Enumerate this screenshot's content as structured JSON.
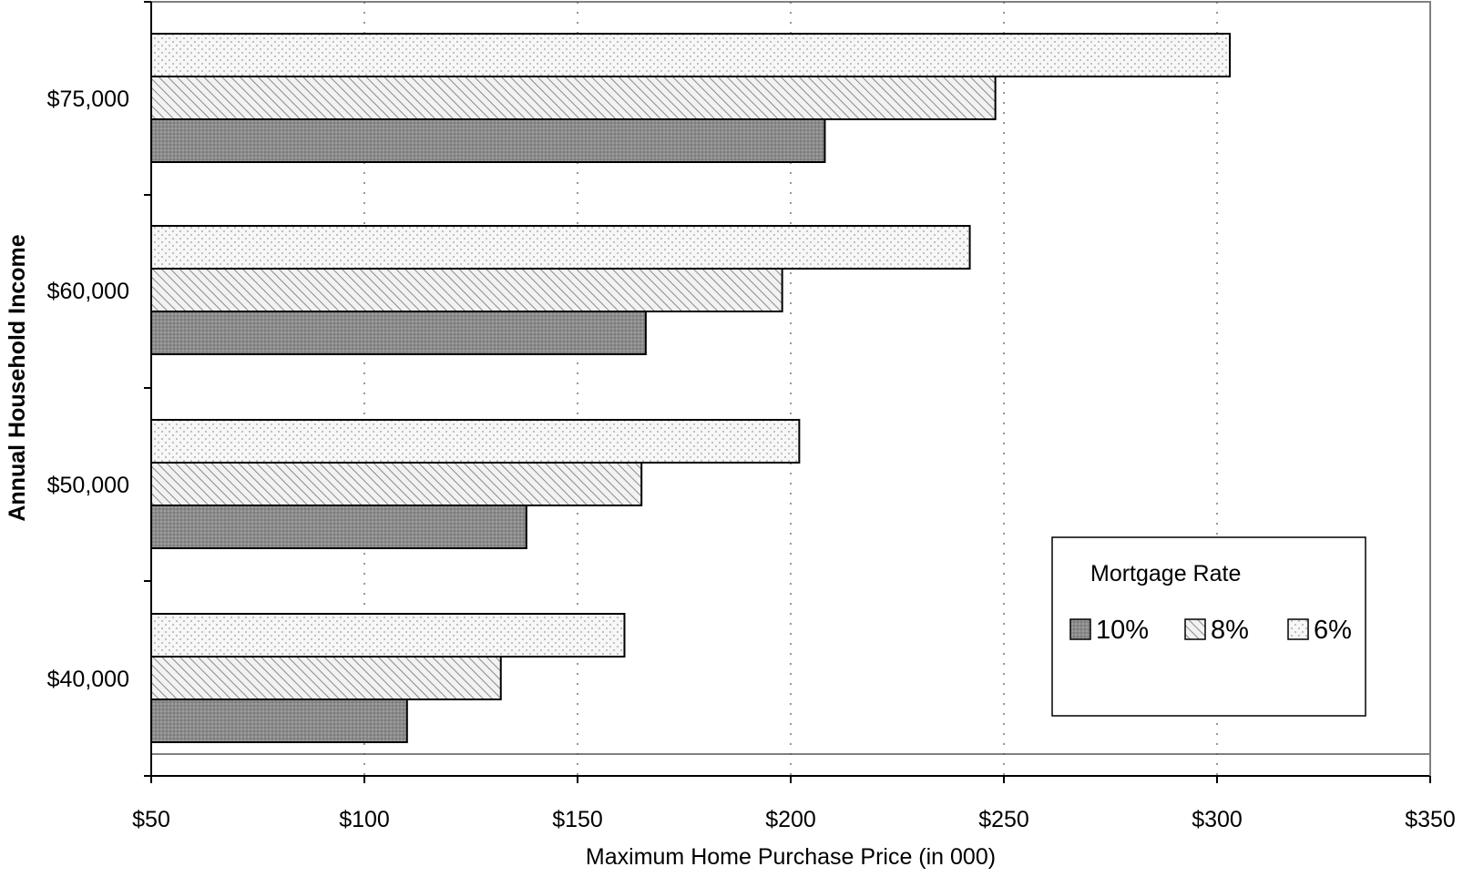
{
  "chart_data": {
    "type": "bar",
    "orientation": "horizontal",
    "categories": [
      "$40,000",
      "$50,000",
      "$60,000",
      "$75,000"
    ],
    "series": [
      {
        "name": "10%",
        "values": [
          110,
          138,
          166,
          208
        ],
        "fill": "#8c8c8c",
        "pattern": "dots-dark"
      },
      {
        "name": "8%",
        "values": [
          132,
          165,
          198,
          248
        ],
        "fill": "#e6e6e6",
        "pattern": "diagonal"
      },
      {
        "name": "6%",
        "values": [
          161,
          202,
          242,
          303
        ],
        "fill": "#f4f4f4",
        "pattern": "dots-light"
      }
    ],
    "x_ticks": [
      "$50",
      "$100",
      "$150",
      "$200",
      "$250",
      "$300",
      "$350"
    ],
    "x_tick_values": [
      50,
      100,
      150,
      200,
      250,
      300,
      350
    ],
    "xlim": [
      50,
      350
    ],
    "xlabel": "Maximum Home Purchase Price (in 000)",
    "ylabel": "Annual Household Income",
    "legend_title": "Mortgage Rate",
    "legend_position": "bottom-right",
    "grid": "vertical dotted"
  }
}
